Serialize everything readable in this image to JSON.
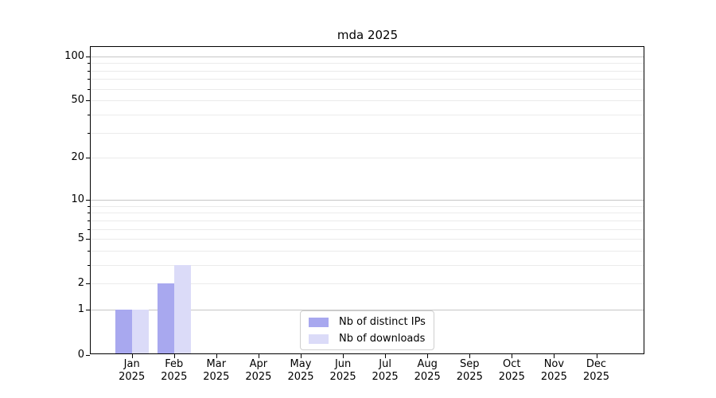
{
  "figure": {
    "title": "mda 2025",
    "background": "#ffffff"
  },
  "chart_data": {
    "type": "bar",
    "title": "mda 2025",
    "categories": [
      "Jan 2025",
      "Feb 2025",
      "Mar 2025",
      "Apr 2025",
      "May 2025",
      "Jun 2025",
      "Jul 2025",
      "Aug 2025",
      "Sep 2025",
      "Oct 2025",
      "Nov 2025",
      "Dec 2025"
    ],
    "series": [
      {
        "name": "Nb of distinct IPs",
        "color": "#a8a8ef",
        "values": [
          1,
          2,
          0,
          0,
          0,
          0,
          0,
          0,
          0,
          0,
          0,
          0
        ]
      },
      {
        "name": "Nb of downloads",
        "color": "#dbdbf8",
        "values": [
          1,
          3,
          0,
          0,
          0,
          0,
          0,
          0,
          0,
          0,
          0,
          0
        ]
      }
    ],
    "xlabel": "",
    "ylabel": "",
    "yscale": "log1p",
    "ylim": [
      0,
      115
    ],
    "yticks": [
      0,
      1,
      2,
      5,
      10,
      20,
      50,
      100
    ],
    "major_gridlines": [
      1,
      10,
      100
    ],
    "minor_gridlines": [
      3,
      4,
      6,
      7,
      8,
      9,
      30,
      40,
      60,
      70,
      80,
      90
    ],
    "grid": true,
    "legend_position": "lower center"
  },
  "colors": {
    "major_grid": "#c6c6c6",
    "minor_grid": "#ebebeb",
    "spine": "#000000",
    "text": "#000000"
  }
}
